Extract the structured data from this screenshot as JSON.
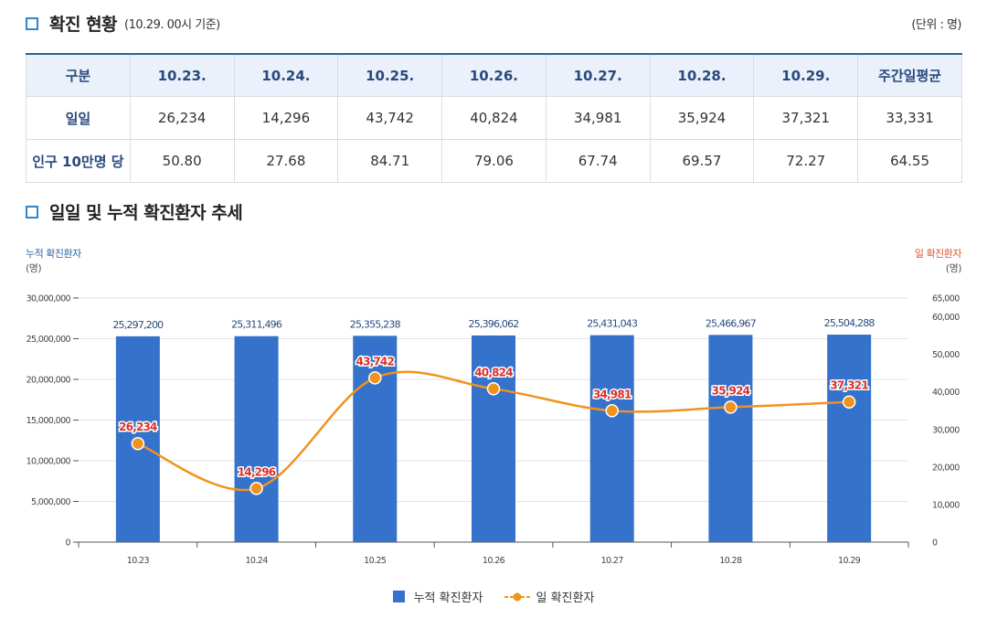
{
  "section1": {
    "title": "확진 현황",
    "subtitle": "(10.29. 00시 기준)",
    "unit": "(단위 : 명)"
  },
  "table": {
    "headers": [
      "구분",
      "10.23.",
      "10.24.",
      "10.25.",
      "10.26.",
      "10.27.",
      "10.28.",
      "10.29.",
      "주간일평균"
    ],
    "rows": [
      {
        "label": "일일",
        "cells": [
          "26,234",
          "14,296",
          "43,742",
          "40,824",
          "34,981",
          "35,924",
          "37,321",
          "33,331"
        ]
      },
      {
        "label": "인구 10만명 당",
        "cells": [
          "50.80",
          "27.68",
          "84.71",
          "79.06",
          "67.74",
          "69.57",
          "72.27",
          "64.55"
        ]
      }
    ]
  },
  "section2": {
    "title": "일일 및 누적 확진환자 추세"
  },
  "axis": {
    "left_title": "누적 확진환자",
    "left_unit": "(명)",
    "right_title": "일 확진환자",
    "right_unit": "(명)"
  },
  "legend": {
    "bar_label": "누적 확진환자",
    "line_label": "일 확진환자"
  },
  "colors": {
    "bar": "#3472cb",
    "line": "#f0931e",
    "line_label": "#d9312a",
    "left_axis": "#2f64a8",
    "right_axis": "#d65b2a"
  },
  "chart_data": {
    "type": "bar",
    "categories": [
      "10.23",
      "10.24",
      "10.25",
      "10.26",
      "10.27",
      "10.28",
      "10.29"
    ],
    "series": [
      {
        "name": "누적 확진환자",
        "type": "bar",
        "axis": "left",
        "values": [
          25297200,
          25311496,
          25355238,
          25396062,
          25431043,
          25466967,
          25504288
        ],
        "labels": [
          "25,297,200",
          "25,311,496",
          "25,355,238",
          "25,396,062",
          "25,431,043",
          "25,466,967",
          "25,504,288"
        ]
      },
      {
        "name": "일 확진환자",
        "type": "line",
        "axis": "right",
        "values": [
          26234,
          14296,
          43742,
          40824,
          34981,
          35924,
          37321
        ],
        "labels": [
          "26,234",
          "14,296",
          "43,742",
          "40,824",
          "34,981",
          "35,924",
          "37,321"
        ]
      }
    ],
    "left_axis": {
      "range": [
        0,
        30000000
      ],
      "ticks": [
        0,
        5000000,
        10000000,
        15000000,
        20000000,
        25000000,
        30000000
      ],
      "tick_labels": [
        "0",
        "5,000,000",
        "10,000,000",
        "15,000,000",
        "20,000,000",
        "25,000,000",
        "30,000,000"
      ]
    },
    "right_axis": {
      "range": [
        0,
        65000
      ],
      "ticks": [
        0,
        10000,
        20000,
        30000,
        40000,
        50000,
        60000,
        65000
      ],
      "tick_labels": [
        "0",
        "10,000",
        "20,000",
        "30,000",
        "40,000",
        "50,000",
        "60,000",
        "65,000"
      ]
    },
    "grid": true,
    "legend_position": "bottom"
  }
}
